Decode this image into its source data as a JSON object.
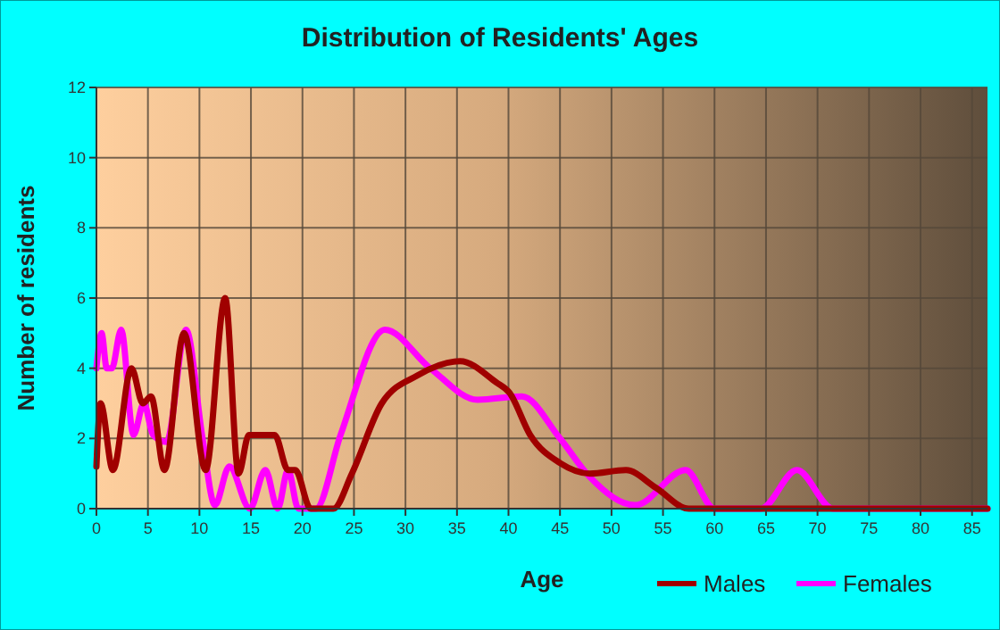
{
  "chart_data": {
    "type": "line",
    "title": "Distribution of Residents' Ages",
    "xlabel": "Age",
    "ylabel": "Number of residents",
    "xlim": [
      0,
      86.5
    ],
    "ylim": [
      0,
      12
    ],
    "xticks": [
      0,
      5,
      10,
      15,
      20,
      25,
      30,
      35,
      40,
      45,
      50,
      55,
      60,
      65,
      70,
      75,
      80,
      85
    ],
    "yticks": [
      0,
      2,
      4,
      6,
      8,
      10,
      12
    ],
    "grid": true,
    "legend": "bottom right",
    "line_style": "solid",
    "series": [
      {
        "name": "Males",
        "color": "#a00000",
        "x": [
          0,
          0.4,
          1.6,
          3.4,
          4.5,
          5.3,
          6.6,
          8.5,
          10.6,
          12.5,
          13.8,
          14.8,
          17.3,
          18.6,
          19.3,
          20.8,
          23,
          24.8,
          27.7,
          31.2,
          35.3,
          38.8,
          40.1,
          42.1,
          45,
          47.9,
          51.4,
          54.3,
          57.5,
          86.5
        ],
        "values": [
          1.2,
          3,
          1.1,
          4,
          3,
          3.2,
          1.1,
          5,
          1.1,
          6,
          1,
          2.1,
          2.1,
          1.1,
          1.1,
          0,
          0,
          1,
          3,
          3.8,
          4.2,
          3.6,
          3.3,
          2.1,
          1.3,
          1,
          1.1,
          0.6,
          0,
          0
        ]
      },
      {
        "name": "Females",
        "color": "#ff00ff",
        "x": [
          0,
          0.5,
          1,
          1.5,
          2.4,
          3.6,
          4.6,
          5.5,
          6.8,
          8.7,
          10.3,
          11.5,
          12.9,
          14.9,
          16.4,
          17.6,
          18.6,
          19.6,
          21.3,
          23.7,
          28,
          32.4,
          37,
          41.3,
          45,
          47.9,
          52.3,
          57.2,
          60,
          64.5,
          68,
          71.5,
          86.5
        ],
        "values": [
          4,
          5,
          4,
          4,
          5.1,
          2.1,
          3,
          2.1,
          1.9,
          5.1,
          2,
          0.1,
          1.2,
          0,
          1.1,
          0,
          1.1,
          0,
          0,
          2.1,
          5.1,
          4,
          3.1,
          3.2,
          2,
          0.9,
          0.1,
          1.1,
          0,
          0,
          1.1,
          0,
          0
        ]
      }
    ]
  }
}
